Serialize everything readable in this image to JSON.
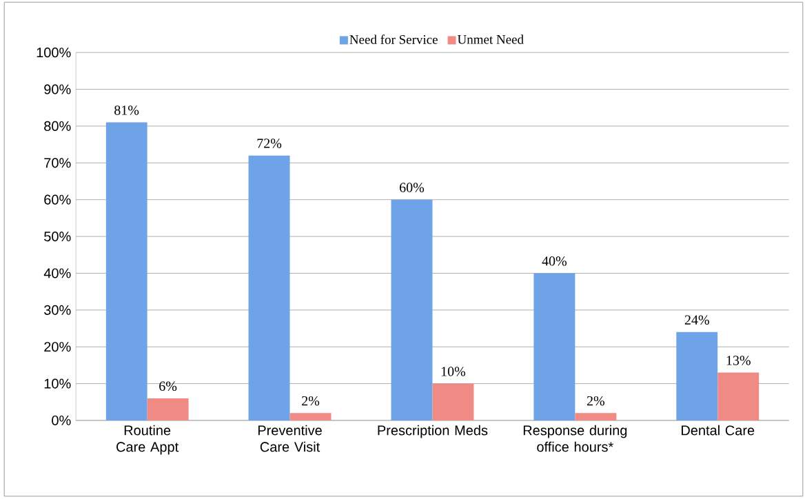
{
  "chart_data": {
    "type": "bar",
    "categories": [
      "Routine Care Appt",
      "Preventive Care Visit",
      "Prescription Meds",
      "Response during office hours*",
      "Dental Care"
    ],
    "series": [
      {
        "name": "Need for Service",
        "color": "#6fa3e8",
        "values": [
          81,
          72,
          60,
          40,
          24
        ],
        "value_labels": [
          "81%",
          "72%",
          "60%",
          "40%",
          "24%"
        ]
      },
      {
        "name": "Unmet Need",
        "color": "#f08a84",
        "values": [
          6,
          2,
          10,
          2,
          13
        ],
        "value_labels": [
          "6%",
          "2%",
          "10%",
          "2%",
          "13%"
        ]
      }
    ],
    "ylim": [
      0,
      100
    ],
    "yticks": [
      {
        "value": 0,
        "label": "0%"
      },
      {
        "value": 10,
        "label": "10%"
      },
      {
        "value": 20,
        "label": "20%"
      },
      {
        "value": 30,
        "label": "30%"
      },
      {
        "value": 40,
        "label": "40%"
      },
      {
        "value": 50,
        "label": "50%"
      },
      {
        "value": 60,
        "label": "60%"
      },
      {
        "value": 70,
        "label": "70%"
      },
      {
        "value": 80,
        "label": "80%"
      },
      {
        "value": 90,
        "label": "90%"
      },
      {
        "value": 100,
        "label": "100%"
      }
    ],
    "grid": "y",
    "legend": "top"
  }
}
